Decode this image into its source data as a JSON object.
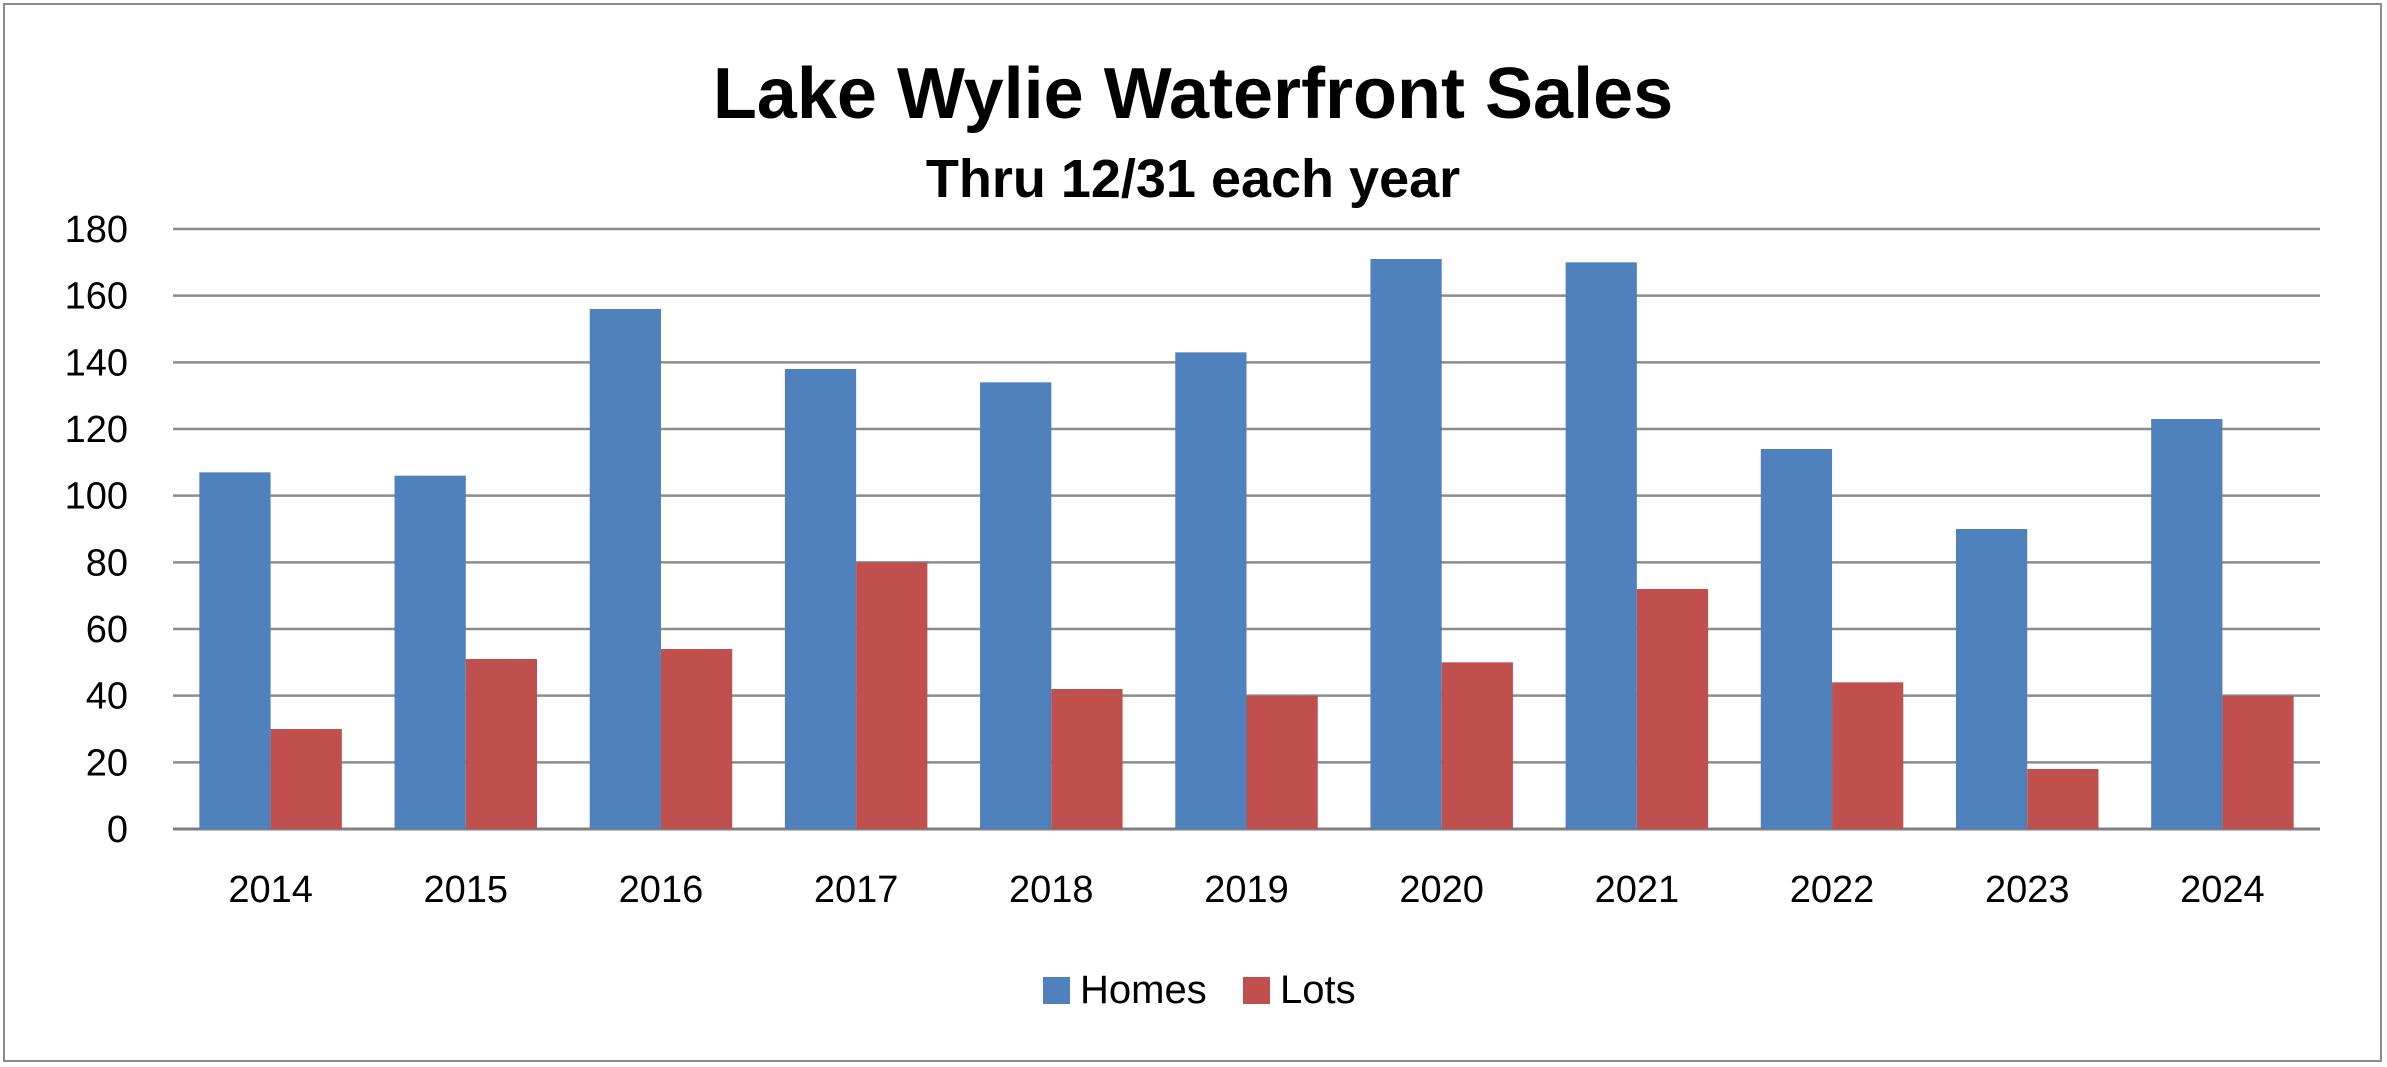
{
  "chart_data": {
    "type": "bar",
    "title": "Lake Wylie Waterfront Sales",
    "subtitle": "Thru 12/31 each year",
    "categories": [
      "2014",
      "2015",
      "2016",
      "2017",
      "2018",
      "2019",
      "2020",
      "2021",
      "2022",
      "2023",
      "2024"
    ],
    "series": [
      {
        "name": "Homes",
        "color": "#4F81BD",
        "values": [
          107,
          106,
          156,
          138,
          134,
          143,
          171,
          170,
          114,
          90,
          123
        ]
      },
      {
        "name": "Lots",
        "color": "#C0504D",
        "values": [
          30,
          51,
          54,
          80,
          42,
          40,
          50,
          72,
          44,
          18,
          40
        ]
      }
    ],
    "ylim": [
      0,
      180
    ],
    "yticks": [
      "0",
      "20",
      "40",
      "60",
      "80",
      "100",
      "120",
      "140",
      "160",
      "180"
    ],
    "grid": true,
    "legend_position": "bottom"
  }
}
